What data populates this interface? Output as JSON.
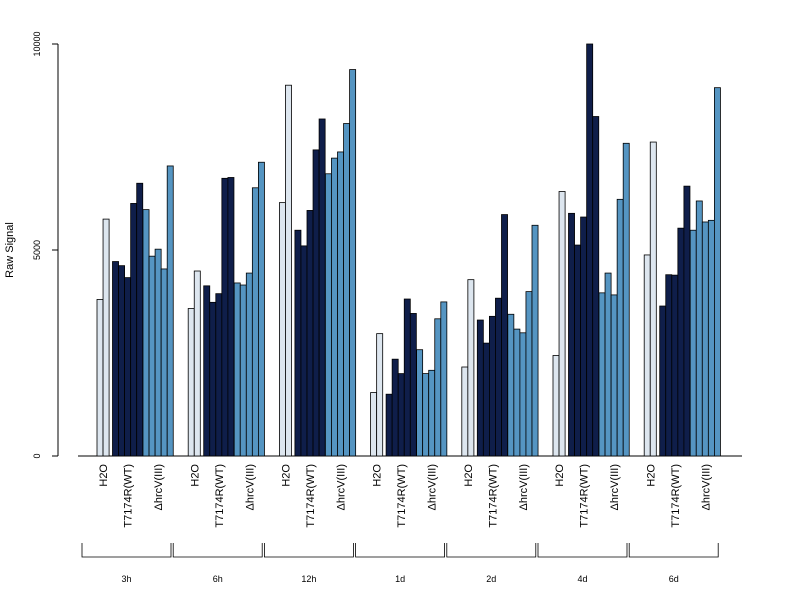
{
  "chart_data": {
    "type": "bar",
    "title": "",
    "xlabel": "",
    "ylabel": "Raw Signal",
    "ylim": [
      0,
      10000
    ],
    "yticks": [
      0,
      5000,
      10000
    ],
    "grid": false,
    "legend": "none",
    "condition_labels": [
      "H2O",
      "T7174R(WT)",
      "ΔhrcV(III)"
    ],
    "condition_colors": [
      "#dde6ef",
      "#0f1e4a",
      "#5595c2"
    ],
    "time_groups": [
      {
        "label": "3h",
        "conditions": [
          {
            "name": "H2O",
            "values": [
              3800,
              5750
            ]
          },
          {
            "name": "T7174R(WT)",
            "values": [
              4720,
              4620,
              4330,
              6130,
              6620
            ]
          },
          {
            "name": "ΔhrcV(III)",
            "values": [
              5980,
              4850,
              5020,
              4540,
              7040
            ]
          }
        ]
      },
      {
        "label": "6h",
        "conditions": [
          {
            "name": "H2O",
            "values": [
              3580,
              4490
            ]
          },
          {
            "name": "T7174R(WT)",
            "values": [
              4130,
              3730,
              3940,
              6740,
              6760
            ]
          },
          {
            "name": "ΔhrcV(III)",
            "values": [
              4200,
              4150,
              4440,
              6510,
              7130
            ]
          }
        ]
      },
      {
        "label": "12h",
        "conditions": [
          {
            "name": "H2O",
            "values": [
              6150,
              9000
            ]
          },
          {
            "name": "T7174R(WT)",
            "values": [
              5480,
              5100,
              5960,
              7430,
              8180
            ]
          },
          {
            "name": "ΔhrcV(III)",
            "values": [
              6850,
              7230,
              7380,
              8070,
              9380
            ]
          }
        ]
      },
      {
        "label": "1d",
        "conditions": [
          {
            "name": "H2O",
            "values": [
              1540,
              2970
            ]
          },
          {
            "name": "T7174R(WT)",
            "values": [
              1500,
              2350,
              2000,
              3810,
              3460
            ]
          },
          {
            "name": "ΔhrcV(III)",
            "values": [
              2580,
              2000,
              2080,
              3330,
              3740
            ]
          }
        ]
      },
      {
        "label": "2d",
        "conditions": [
          {
            "name": "H2O",
            "values": [
              2160,
              4280
            ]
          },
          {
            "name": "T7174R(WT)",
            "values": [
              3300,
              2740,
              3390,
              3830,
              5860
            ]
          },
          {
            "name": "ΔhrcV(III)",
            "values": [
              3440,
              3080,
              2990,
              3990,
              5600
            ]
          }
        ]
      },
      {
        "label": "4d",
        "conditions": [
          {
            "name": "H2O",
            "values": [
              2440,
              6420
            ]
          },
          {
            "name": "T7174R(WT)",
            "values": [
              5890,
              5120,
              5800,
              10000,
              8240
            ]
          },
          {
            "name": "ΔhrcV(III)",
            "values": [
              3960,
              4440,
              3910,
              6230,
              7590
            ]
          }
        ]
      },
      {
        "label": "6d",
        "conditions": [
          {
            "name": "H2O",
            "values": [
              4880,
              7620
            ]
          },
          {
            "name": "T7174R(WT)",
            "values": [
              3640,
              4400,
              4390,
              5530,
              6550
            ]
          },
          {
            "name": "ΔhrcV(III)",
            "values": [
              5480,
              6190,
              5680,
              5720,
              8940
            ]
          }
        ]
      }
    ]
  }
}
